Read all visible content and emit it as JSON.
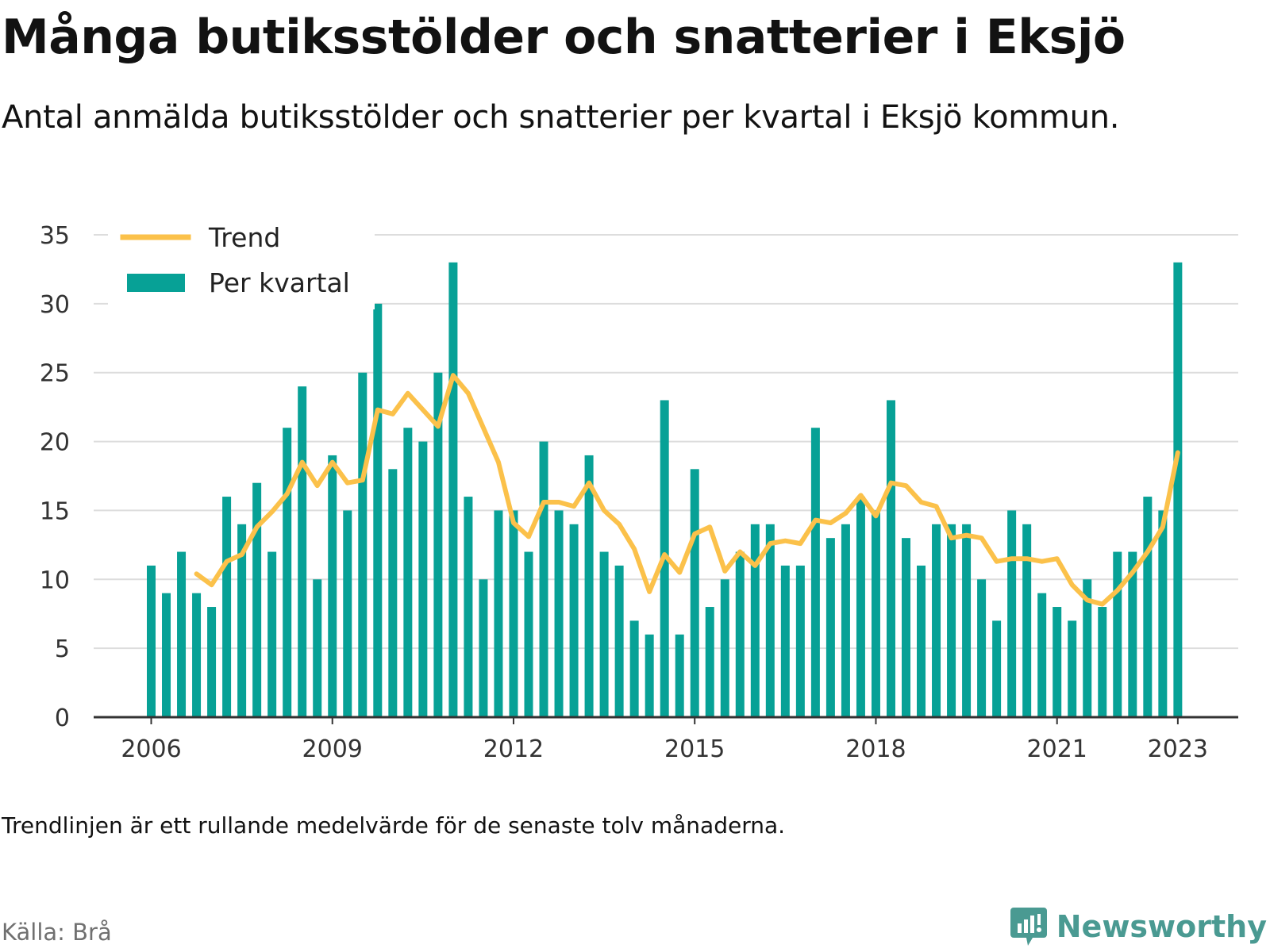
{
  "header": {
    "title": "Många butiksstölder och snatterier i Eksjö",
    "subtitle": "Antal anmälda butiksstölder och snatterier per kvartal i Eksjö kommun."
  },
  "footer": {
    "note": "Trendlinjen är ett rullande medelvärde för de senaste tolv månaderna.",
    "source": "Källa: Brå",
    "brand": "Newsworthy"
  },
  "colors": {
    "bar": "#07a196",
    "trend": "#fbc14a",
    "grid": "#dddddd",
    "axis": "#333333",
    "brand": "#4a9a92"
  },
  "chart_data": {
    "type": "bar",
    "x_axis": {
      "ticks": [
        "2006",
        "2009",
        "2012",
        "2015",
        "2018",
        "2021",
        "2023"
      ]
    },
    "y_axis": {
      "ticks": [
        0,
        5,
        10,
        15,
        20,
        25,
        30,
        35
      ],
      "range": [
        0,
        35
      ]
    },
    "grid": true,
    "legend": {
      "position": "top-left",
      "trend_label": "Trend",
      "bars_label": "Per kvartal"
    },
    "series": [
      {
        "name": "Per kvartal",
        "type": "bar",
        "start_quarter": "2006 Q1",
        "values": [
          11,
          9,
          12,
          9,
          8,
          16,
          14,
          17,
          12,
          21,
          24,
          10,
          19,
          15,
          25,
          30,
          18,
          21,
          20,
          25,
          33,
          16,
          10,
          15,
          15,
          12,
          20,
          15,
          14,
          19,
          12,
          11,
          7,
          6,
          23,
          6,
          18,
          8,
          10,
          12,
          14,
          14,
          11,
          11,
          21,
          13,
          14,
          16,
          15,
          23,
          13,
          11,
          14,
          14,
          14,
          10,
          7,
          15,
          14,
          9,
          8,
          7,
          10,
          8,
          12,
          12,
          16,
          15,
          33
        ]
      },
      {
        "name": "Trend",
        "type": "line",
        "start_quarter": "2006 Q4",
        "values": [
          10.4,
          9.6,
          11.3,
          11.8,
          13.8,
          14.9,
          16.2,
          18.5,
          16.8,
          18.5,
          17.0,
          17.2,
          22.3,
          22.0,
          23.5,
          22.3,
          21.1,
          24.8,
          23.5,
          21.0,
          18.5,
          14.1,
          13.1,
          15.6,
          15.6,
          15.3,
          17.0,
          15.0,
          14.0,
          12.2,
          9.1,
          11.8,
          10.5,
          13.3,
          13.8,
          10.6,
          12.0,
          11.0,
          12.6,
          12.8,
          12.6,
          14.3,
          14.1,
          14.8,
          16.1,
          14.6,
          17.0,
          16.8,
          15.6,
          15.3,
          13.0,
          13.2,
          13.0,
          11.3,
          11.5,
          11.5,
          11.3,
          11.5,
          9.6,
          8.5,
          8.2,
          9.2,
          10.5,
          12.0,
          13.8,
          19.2
        ]
      }
    ]
  }
}
